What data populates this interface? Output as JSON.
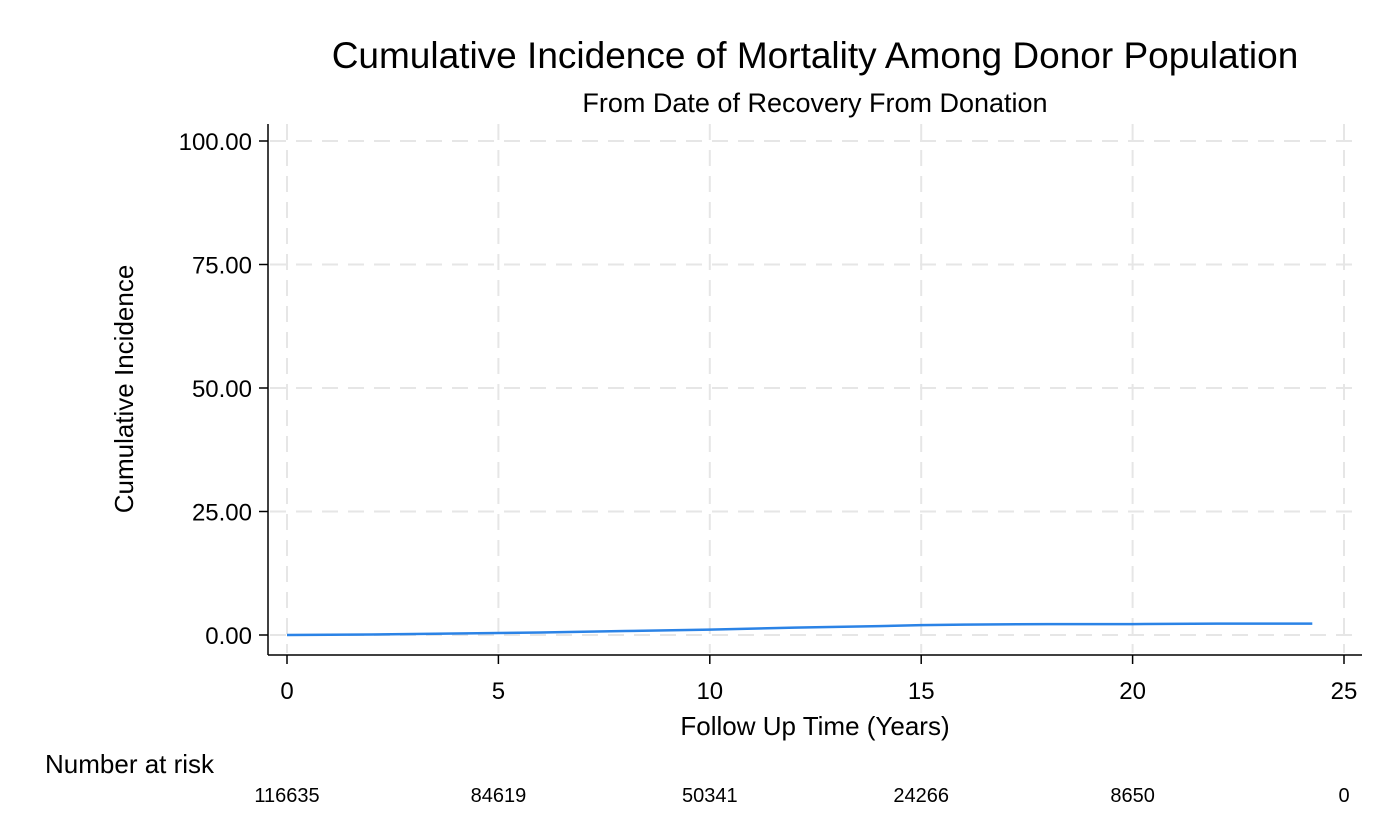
{
  "chart_data": {
    "type": "line",
    "title": "Cumulative Incidence of Mortality Among Donor Population",
    "subtitle": "From Date of Recovery From Donation",
    "xlabel": "Follow Up Time (Years)",
    "ylabel": "Cumulative Incidence",
    "xlim": [
      0,
      25
    ],
    "ylim": [
      0,
      100
    ],
    "x_ticks": [
      0,
      5,
      10,
      15,
      20,
      25
    ],
    "x_tick_labels": [
      "0",
      "5",
      "10",
      "15",
      "20",
      "25"
    ],
    "y_ticks": [
      0,
      25,
      50,
      75,
      100
    ],
    "y_tick_labels": [
      "0.00",
      "25.00",
      "50.00",
      "75.00",
      "100.00"
    ],
    "grid": true,
    "colors": {
      "series": "#2b83e6",
      "grid": "#e6e6e6",
      "axis": "#000000"
    },
    "series": [
      {
        "x": [
          0,
          2,
          4,
          6,
          8,
          10,
          12,
          14,
          15,
          16,
          18,
          20,
          22,
          24.25
        ],
        "y": [
          0,
          0.1,
          0.3,
          0.5,
          0.8,
          1.1,
          1.5,
          1.8,
          2.0,
          2.1,
          2.2,
          2.2,
          2.3,
          2.3
        ]
      }
    ],
    "risk_table": {
      "title": "Number at risk",
      "times": [
        0,
        5,
        10,
        15,
        20,
        25
      ],
      "counts": [
        "116635",
        "84619",
        "50341",
        "24266",
        "8650",
        "0"
      ]
    }
  }
}
